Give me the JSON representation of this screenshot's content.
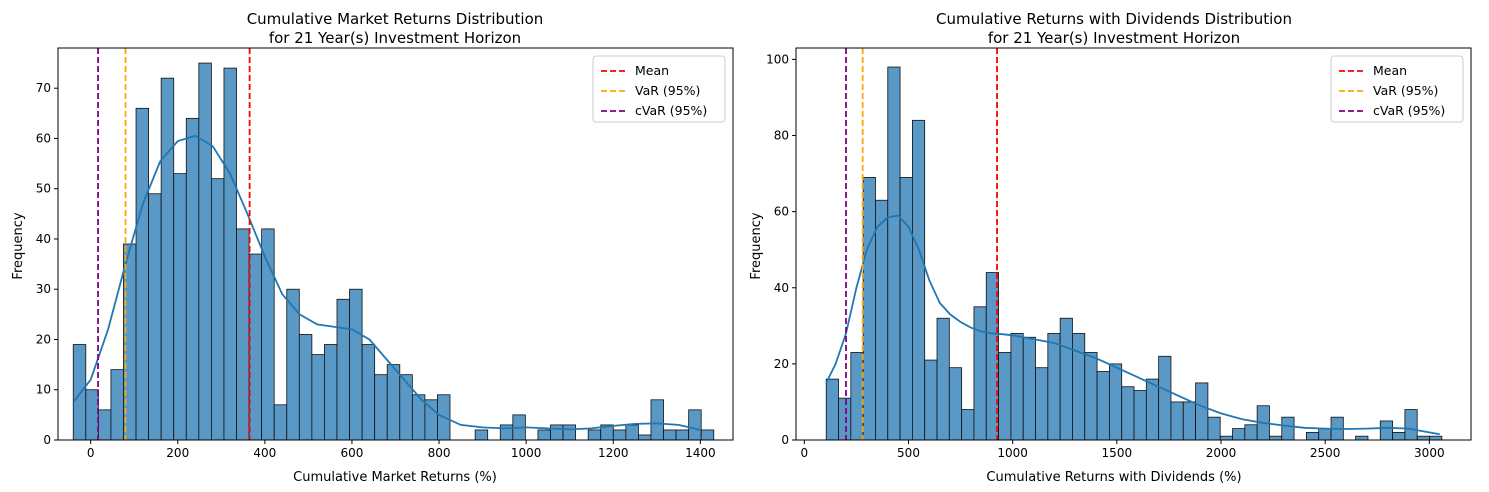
{
  "colors": {
    "bar_fill": "#5a98c6",
    "bar_edge": "#111111",
    "kde_line": "#1f77b4",
    "mean": "#ff0000",
    "var": "#ffa500",
    "cvar": "#800080"
  },
  "chart_data": [
    {
      "type": "bar",
      "title": "Cumulative Market Returns Distribution\nfor 21 Year(s) Investment Horizon",
      "xlabel": "Cumulative Market Returns (%)",
      "ylabel": "Frequency",
      "xlim": [
        -75,
        1475
      ],
      "ylim": [
        0,
        78
      ],
      "xticks": [
        0,
        200,
        400,
        600,
        800,
        1000,
        1200,
        1400
      ],
      "yticks": [
        0,
        10,
        20,
        30,
        40,
        50,
        60,
        70
      ],
      "grid": false,
      "legend_placement": "top-right",
      "bin_start": -40,
      "bin_width": 28.84,
      "values": [
        19,
        10,
        6,
        14,
        39,
        66,
        49,
        72,
        53,
        64,
        75,
        52,
        74,
        42,
        37,
        42,
        7,
        30,
        21,
        17,
        19,
        28,
        30,
        19,
        13,
        15,
        13,
        9,
        8,
        9,
        0,
        0,
        2,
        0,
        3,
        5,
        0,
        2,
        3,
        3,
        0,
        2,
        3,
        2,
        3,
        1,
        8,
        2,
        2,
        6,
        2
      ],
      "kde": {
        "x": [
          -40,
          0,
          40,
          80,
          120,
          160,
          200,
          240,
          280,
          320,
          360,
          400,
          440,
          480,
          520,
          560,
          600,
          640,
          680,
          720,
          760,
          800,
          850,
          900,
          950,
          1000,
          1050,
          1100,
          1150,
          1200,
          1250,
          1300,
          1350,
          1400
        ],
        "y": [
          7.5,
          12,
          22,
          35,
          47,
          55.5,
          59.5,
          60.5,
          58.5,
          53,
          45,
          36.5,
          29,
          25,
          23,
          22.5,
          22,
          20,
          16,
          12,
          8,
          5,
          3,
          2.5,
          2.3,
          2.5,
          2.3,
          2.1,
          2.3,
          2.8,
          3.2,
          3.3,
          3,
          2
        ]
      },
      "vlines": [
        {
          "name": "Mean",
          "x": 365,
          "color": "#ff0000"
        },
        {
          "name": "VaR (95%)",
          "x": 80,
          "color": "#ffa500"
        },
        {
          "name": "cVaR (95%)",
          "x": 17,
          "color": "#800080"
        }
      ],
      "legend": [
        "Mean",
        "VaR (95%)",
        "cVaR (95%)"
      ]
    },
    {
      "type": "bar",
      "title": "Cumulative Returns with Dividends Distribution\nfor 21 Year(s) Investment Horizon",
      "xlabel": "Cumulative Returns with Dividends (%)",
      "ylabel": "Frequency",
      "xlim": [
        -40,
        3200
      ],
      "ylim": [
        0,
        103
      ],
      "xticks": [
        0,
        500,
        1000,
        1500,
        2000,
        2500,
        3000
      ],
      "yticks": [
        0,
        20,
        40,
        60,
        80,
        100
      ],
      "grid": false,
      "legend_placement": "top-right",
      "bin_start": 105,
      "bin_width": 59.1,
      "values": [
        16,
        11,
        23,
        69,
        63,
        98,
        69,
        84,
        21,
        32,
        19,
        8,
        35,
        44,
        23,
        28,
        27,
        19,
        28,
        32,
        28,
        23,
        18,
        20,
        14,
        13,
        16,
        22,
        10,
        10,
        15,
        6,
        1,
        3,
        4,
        9,
        1,
        6,
        0,
        2,
        3,
        6,
        0,
        1,
        0,
        5,
        2,
        8,
        1,
        1
      ],
      "kde": {
        "x": [
          105,
          150,
          200,
          250,
          300,
          350,
          400,
          450,
          500,
          550,
          600,
          650,
          700,
          750,
          800,
          850,
          900,
          950,
          1000,
          1100,
          1200,
          1300,
          1400,
          1500,
          1600,
          1700,
          1800,
          1900,
          2000,
          2100,
          2200,
          2300,
          2400,
          2500,
          2600,
          2700,
          2800,
          2900,
          3000,
          3050
        ],
        "y": [
          15,
          20,
          28,
          40,
          50,
          56,
          58.5,
          59,
          56,
          50,
          42,
          36,
          33,
          31,
          29.5,
          28.5,
          28,
          27.8,
          27.5,
          26.5,
          25.5,
          23.5,
          21.5,
          19,
          16.5,
          14,
          11.5,
          9,
          7,
          5.5,
          4.5,
          3.8,
          3.2,
          3,
          2.9,
          3,
          3.2,
          3,
          2,
          1.5
        ]
      },
      "vlines": [
        {
          "name": "Mean",
          "x": 925,
          "color": "#ff0000"
        },
        {
          "name": "VaR (95%)",
          "x": 280,
          "color": "#ffa500"
        },
        {
          "name": "cVaR (95%)",
          "x": 200,
          "color": "#800080"
        }
      ],
      "legend": [
        "Mean",
        "VaR (95%)",
        "cVaR (95%)"
      ]
    }
  ]
}
